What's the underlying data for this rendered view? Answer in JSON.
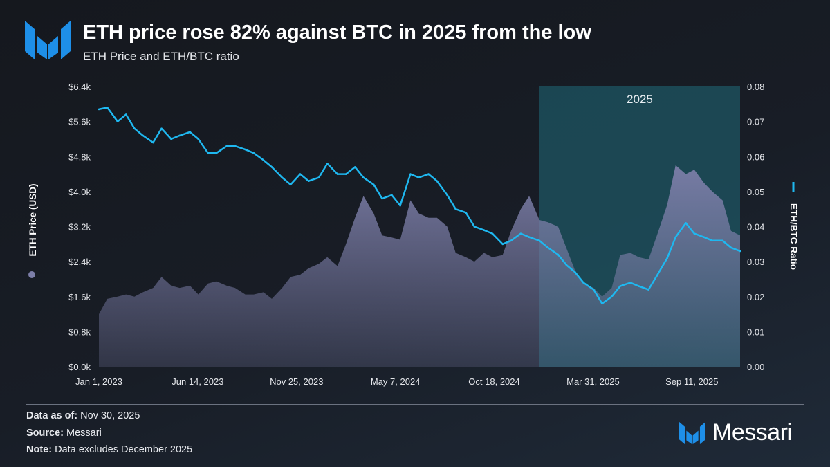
{
  "header": {
    "title": "ETH price rose 82% against BTC in 2025 from the low",
    "subtitle": "ETH Price and ETH/BTC ratio"
  },
  "footer": {
    "data_as_of_label": "Data as of:",
    "data_as_of": "Nov 30, 2025",
    "source_label": "Source:",
    "source": "Messari",
    "note_label": "Note:",
    "note": "Data excludes December 2025",
    "brand": "Messari"
  },
  "colors": {
    "ratio_line": "#1fb8f0",
    "price_area": "#7c7ea8",
    "highlight": "#1e5563",
    "brand_blue": "#1e8fe8"
  },
  "chart_data": {
    "type": "line",
    "title": "ETH price rose 82% against BTC in 2025 from the low",
    "subtitle": "ETH Price and ETH/BTC ratio",
    "x_ticks": [
      "Jan 1, 2023",
      "Jun 14, 2023",
      "Nov 25, 2023",
      "May 7, 2024",
      "Oct 18, 2024",
      "Mar 31, 2025",
      "Sep 11, 2025"
    ],
    "x_tick_dates": [
      "2023-01-01",
      "2023-06-14",
      "2023-11-25",
      "2024-05-07",
      "2024-10-18",
      "2025-03-31",
      "2025-09-11"
    ],
    "xlim": [
      "2023-01-01",
      "2025-11-30"
    ],
    "y_left": {
      "label": "ETH Price (USD)",
      "ylim": [
        0,
        6400
      ],
      "ticks": [
        "$0.0k",
        "$0.8k",
        "$1.6k",
        "$2.4k",
        "$3.2k",
        "$4.0k",
        "$4.8k",
        "$5.6k",
        "$6.4k"
      ]
    },
    "y_right": {
      "label": "ETH/BTC Ratio",
      "ylim": [
        0,
        0.08
      ],
      "ticks": [
        "0.00",
        "0.01",
        "0.02",
        "0.03",
        "0.04",
        "0.05",
        "0.06",
        "0.07",
        "0.08"
      ]
    },
    "highlight": {
      "label": "2025",
      "start": "2025-01-01",
      "end": "2025-11-30"
    },
    "grid": false,
    "x": [
      "2023-01-01",
      "2023-01-15",
      "2023-02-01",
      "2023-02-15",
      "2023-03-01",
      "2023-03-15",
      "2023-04-01",
      "2023-04-15",
      "2023-05-01",
      "2023-05-15",
      "2023-06-01",
      "2023-06-15",
      "2023-07-01",
      "2023-07-15",
      "2023-08-01",
      "2023-08-15",
      "2023-09-01",
      "2023-09-15",
      "2023-10-01",
      "2023-10-15",
      "2023-11-01",
      "2023-11-15",
      "2023-12-01",
      "2023-12-15",
      "2024-01-01",
      "2024-01-15",
      "2024-02-01",
      "2024-02-15",
      "2024-03-01",
      "2024-03-15",
      "2024-04-01",
      "2024-04-15",
      "2024-05-01",
      "2024-05-15",
      "2024-06-01",
      "2024-06-15",
      "2024-07-01",
      "2024-07-15",
      "2024-08-01",
      "2024-08-15",
      "2024-09-01",
      "2024-09-15",
      "2024-10-01",
      "2024-10-15",
      "2024-11-01",
      "2024-11-15",
      "2024-12-01",
      "2024-12-15",
      "2025-01-01",
      "2025-01-15",
      "2025-02-01",
      "2025-02-15",
      "2025-03-01",
      "2025-03-15",
      "2025-04-01",
      "2025-04-15",
      "2025-05-01",
      "2025-05-15",
      "2025-06-01",
      "2025-06-15",
      "2025-07-01",
      "2025-07-15",
      "2025-08-01",
      "2025-08-15",
      "2025-09-01",
      "2025-09-15",
      "2025-10-01",
      "2025-10-15",
      "2025-11-01",
      "2025-11-15",
      "2025-11-30"
    ],
    "series": [
      {
        "name": "ETH Price (USD)",
        "type": "area",
        "axis": "left",
        "values": [
          1200,
          1550,
          1600,
          1650,
          1600,
          1700,
          1800,
          2050,
          1850,
          1800,
          1850,
          1650,
          1900,
          1950,
          1850,
          1800,
          1650,
          1650,
          1700,
          1550,
          1800,
          2050,
          2100,
          2250,
          2350,
          2500,
          2300,
          2800,
          3400,
          3900,
          3500,
          3000,
          2950,
          2900,
          3800,
          3500,
          3400,
          3400,
          3200,
          2600,
          2500,
          2400,
          2600,
          2500,
          2550,
          3100,
          3600,
          3900,
          3350,
          3300,
          3200,
          2700,
          2200,
          1900,
          1800,
          1600,
          1800,
          2550,
          2600,
          2500,
          2450,
          3000,
          3700,
          4600,
          4400,
          4500,
          4200,
          4000,
          3800,
          3100,
          3000
        ]
      },
      {
        "name": "ETH/BTC Ratio",
        "type": "line",
        "axis": "right",
        "values": [
          0.0735,
          0.074,
          0.07,
          0.072,
          0.068,
          0.066,
          0.064,
          0.068,
          0.065,
          0.066,
          0.067,
          0.065,
          0.061,
          0.061,
          0.063,
          0.063,
          0.062,
          0.061,
          0.059,
          0.057,
          0.054,
          0.052,
          0.055,
          0.053,
          0.054,
          0.058,
          0.055,
          0.055,
          0.057,
          0.054,
          0.052,
          0.048,
          0.049,
          0.046,
          0.055,
          0.054,
          0.055,
          0.053,
          0.049,
          0.045,
          0.044,
          0.04,
          0.039,
          0.038,
          0.035,
          0.036,
          0.038,
          0.037,
          0.036,
          0.034,
          0.032,
          0.029,
          0.027,
          0.024,
          0.022,
          0.018,
          0.02,
          0.023,
          0.024,
          0.023,
          0.022,
          0.026,
          0.031,
          0.037,
          0.041,
          0.038,
          0.037,
          0.036,
          0.036,
          0.034,
          0.033
        ]
      }
    ]
  }
}
